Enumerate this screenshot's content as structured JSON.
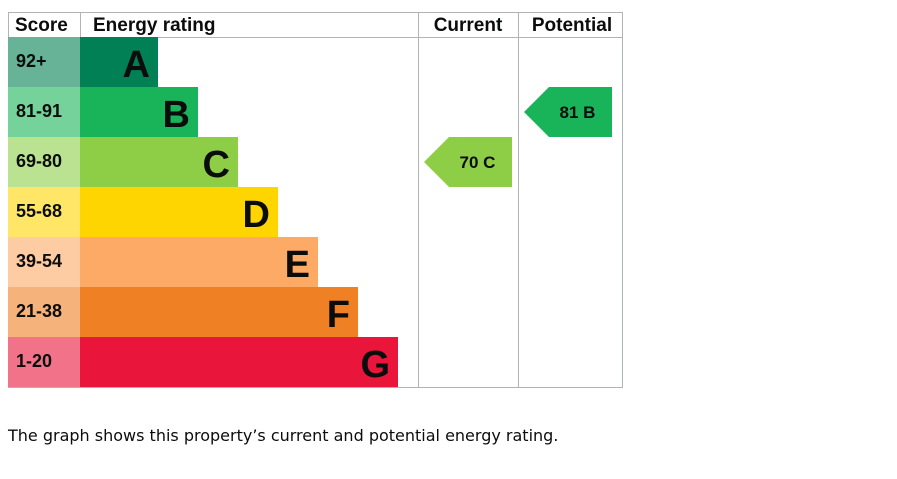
{
  "chart_data": {
    "type": "bar",
    "headers": {
      "score": "Score",
      "rating": "Energy rating",
      "current": "Current",
      "potential": "Potential"
    },
    "bands": [
      {
        "score": "92+",
        "letter": "A",
        "band_color": "#008054",
        "score_color": "#66b398"
      },
      {
        "score": "81-91",
        "letter": "B",
        "band_color": "#19b459",
        "score_color": "#75d29b"
      },
      {
        "score": "69-80",
        "letter": "C",
        "band_color": "#8dce46",
        "score_color": "#bbe290"
      },
      {
        "score": "55-68",
        "letter": "D",
        "band_color": "#ffd500",
        "score_color": "#ffe666"
      },
      {
        "score": "39-54",
        "letter": "E",
        "band_color": "#fcaa65",
        "score_color": "#fdcca3"
      },
      {
        "score": "21-38",
        "letter": "F",
        "band_color": "#ef8023",
        "score_color": "#f5b37b"
      },
      {
        "score": "1-20",
        "letter": "G",
        "band_color": "#e9153b",
        "score_color": "#f27389"
      }
    ],
    "current": {
      "value": 70,
      "letter": "C",
      "label": "70  C",
      "color": "#8dce46"
    },
    "potential": {
      "value": 81,
      "letter": "B",
      "label": "81  B",
      "color": "#19b459"
    }
  },
  "caption": "The graph shows this property’s current and potential energy rating."
}
